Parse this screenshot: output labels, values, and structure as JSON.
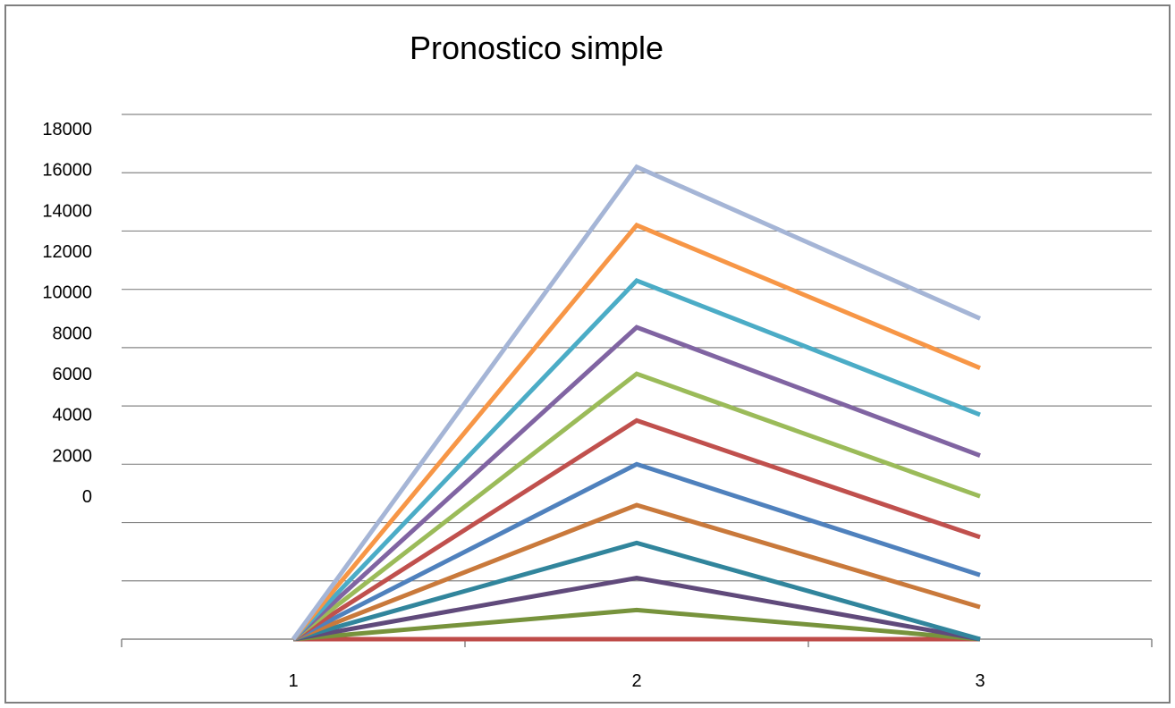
{
  "chart_data": {
    "type": "line",
    "title": "Pronostico simple",
    "xlabel": "",
    "ylabel": "",
    "categories": [
      "1",
      "2",
      "3"
    ],
    "y_tick_labels": [
      "18000",
      "16000",
      "14000",
      "12000",
      "10000",
      "8000",
      "6000",
      "4000",
      "2000",
      "0"
    ],
    "ylim": [
      0,
      18000
    ],
    "grid": true,
    "legend": "none",
    "series": [
      {
        "color": "#be4b48",
        "values": [
          0,
          0,
          0
        ]
      },
      {
        "color": "#77933c",
        "values": [
          0,
          1000,
          0
        ]
      },
      {
        "color": "#604a7b",
        "values": [
          0,
          2100,
          0
        ]
      },
      {
        "color": "#31859c",
        "values": [
          0,
          3300,
          0
        ]
      },
      {
        "color": "#c9793b",
        "values": [
          0,
          4600,
          1100
        ]
      },
      {
        "color": "#4f81bd",
        "values": [
          0,
          6000,
          2200
        ]
      },
      {
        "color": "#c0504d",
        "values": [
          0,
          7500,
          3500
        ]
      },
      {
        "color": "#9bbb59",
        "values": [
          0,
          9100,
          4900
        ]
      },
      {
        "color": "#8064a2",
        "values": [
          0,
          10700,
          6300
        ]
      },
      {
        "color": "#4bacc6",
        "values": [
          0,
          12300,
          7700
        ]
      },
      {
        "color": "#f79646",
        "values": [
          0,
          14200,
          9300
        ]
      },
      {
        "color": "#a5b5d6",
        "values": [
          0,
          16200,
          11000
        ]
      }
    ]
  }
}
